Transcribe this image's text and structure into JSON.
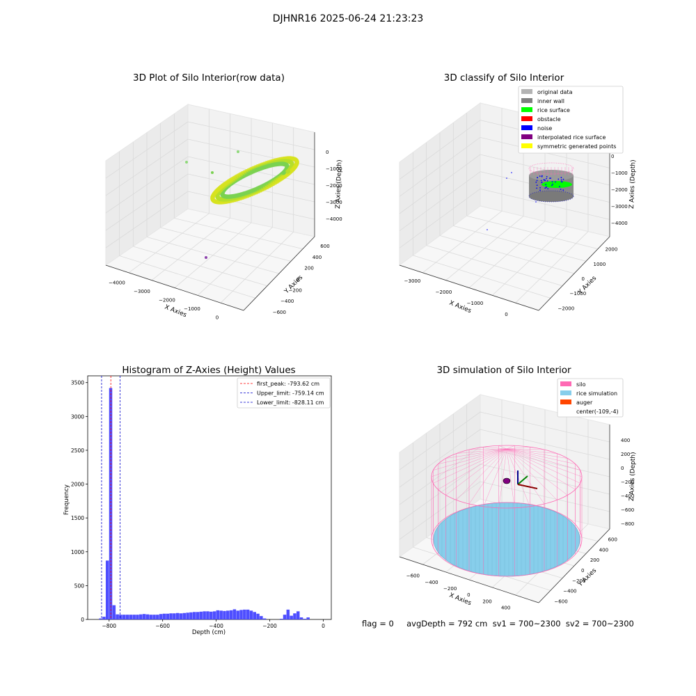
{
  "figure": {
    "suptitle": "DJHNR16 2025-06-24 21:23:23",
    "status_line": "flag = 0     avgDepth = 792 cm  sv1 = 700~2300  sv2 = 700~2300"
  },
  "chart_data": [
    {
      "type": "scatter",
      "title": "3D Plot of Silo Interior(row data)",
      "xlabel": "X Axies",
      "ylabel": "Y Axies",
      "zlabel": "Z Axies (Depth)",
      "x_ticks": [
        -4000,
        -3000,
        -2000,
        -1000,
        0
      ],
      "y_ticks": [
        -600,
        -400,
        -200,
        0,
        200,
        400,
        600
      ],
      "z_ticks": [
        0,
        -1000,
        -2000,
        -3000,
        -4000
      ],
      "colormap": [
        "#440154",
        "#21918c",
        "#7ad151",
        "#fde725"
      ],
      "description_points": "ring-shaped point cloud near top of volume"
    },
    {
      "type": "scatter",
      "title": "3D classify of Silo Interior",
      "xlabel": "X Axies",
      "ylabel": "Y Axies",
      "zlabel": "Z Axies (Depth)",
      "x_ticks": [
        -3000,
        -2000,
        -1000,
        0
      ],
      "y_ticks": [
        -2000,
        -1000,
        0,
        1000,
        2000
      ],
      "z_ticks": [
        0,
        -1000,
        -2000,
        -3000,
        -4000
      ],
      "legend": [
        {
          "label": "original data",
          "color": "#b3b3b3"
        },
        {
          "label": "inner wall",
          "color": "#808080"
        },
        {
          "label": "rice surface",
          "color": "#00ff00"
        },
        {
          "label": "obstacle",
          "color": "#ff0000"
        },
        {
          "label": "noise",
          "color": "#0000ff"
        },
        {
          "label": "interpolated rice surface",
          "color": "#800080"
        },
        {
          "label": "symmetric generated points",
          "color": "#ffff00"
        }
      ]
    },
    {
      "type": "bar",
      "title": "Histogram of Z-Axies (Height) Values",
      "xlabel": "Depth (cm)",
      "ylabel": "Frequency",
      "xlim": [
        -880,
        30
      ],
      "ylim": [
        0,
        3600
      ],
      "x_ticks": [
        -800,
        -600,
        -400,
        -200,
        0
      ],
      "y_ticks": [
        0,
        500,
        1000,
        1500,
        2000,
        2500,
        3000,
        3500
      ],
      "bar_color": "#4444ff",
      "bin_width": 12.5,
      "bins": [
        [
          -837.5,
          15
        ],
        [
          -825,
          40
        ],
        [
          -812.5,
          870
        ],
        [
          -800,
          3420
        ],
        [
          -787.5,
          210
        ],
        [
          -775,
          75
        ],
        [
          -762.5,
          70
        ],
        [
          -750,
          70
        ],
        [
          -737.5,
          70
        ],
        [
          -725,
          70
        ],
        [
          -712.5,
          70
        ],
        [
          -700,
          70
        ],
        [
          -687.5,
          75
        ],
        [
          -675,
          80
        ],
        [
          -662.5,
          75
        ],
        [
          -650,
          70
        ],
        [
          -637.5,
          70
        ],
        [
          -625,
          70
        ],
        [
          -612.5,
          80
        ],
        [
          -600,
          85
        ],
        [
          -587.5,
          85
        ],
        [
          -575,
          90
        ],
        [
          -562.5,
          90
        ],
        [
          -550,
          95
        ],
        [
          -537.5,
          90
        ],
        [
          -525,
          95
        ],
        [
          -512.5,
          100
        ],
        [
          -500,
          105
        ],
        [
          -487.5,
          110
        ],
        [
          -475,
          110
        ],
        [
          -462.5,
          115
        ],
        [
          -450,
          120
        ],
        [
          -437.5,
          120
        ],
        [
          -425,
          115
        ],
        [
          -412.5,
          120
        ],
        [
          -400,
          135
        ],
        [
          -387.5,
          130
        ],
        [
          -375,
          125
        ],
        [
          -362.5,
          130
        ],
        [
          -350,
          135
        ],
        [
          -337.5,
          150
        ],
        [
          -325,
          130
        ],
        [
          -312.5,
          140
        ],
        [
          -300,
          145
        ],
        [
          -287.5,
          145
        ],
        [
          -275,
          130
        ],
        [
          -262.5,
          110
        ],
        [
          -250,
          85
        ],
        [
          -237.5,
          50
        ],
        [
          -225,
          15
        ],
        [
          -162.5,
          10
        ],
        [
          -150,
          70
        ],
        [
          -137.5,
          145
        ],
        [
          -125,
          55
        ],
        [
          -112.5,
          90
        ],
        [
          -100,
          120
        ],
        [
          -87.5,
          30
        ],
        [
          -75,
          10
        ],
        [
          -62.5,
          30
        ]
      ],
      "vlines": [
        {
          "label": "first_peak: -793.62 cm",
          "x": -793.62,
          "color": "#ff0000"
        },
        {
          "label": "Upper_limit: -759.14 cm",
          "x": -759.14,
          "color": "#0000cc"
        },
        {
          "label": "Lower_limit: -828.11 cm",
          "x": -828.11,
          "color": "#0000cc"
        }
      ],
      "legend_position": "upper right"
    },
    {
      "type": "area",
      "title": "3D simulation of Silo Interior",
      "xlabel": "X Axies",
      "ylabel": "Y Axies",
      "zlabel": "Z Axies (Depth)",
      "x_ticks": [
        -600,
        -400,
        -200,
        0,
        200,
        400
      ],
      "y_ticks": [
        -600,
        -400,
        -200,
        0,
        200,
        400,
        600
      ],
      "z_ticks": [
        400,
        200,
        0,
        -200,
        -400,
        -600,
        -800
      ],
      "legend": [
        {
          "label": "silo",
          "color": "#ff69b4"
        },
        {
          "label": "rice simulation",
          "color": "#87ceeb"
        },
        {
          "label": "auger",
          "color": "#ff4500"
        },
        {
          "label": "center(-109,-4)",
          "color": ""
        }
      ]
    }
  ]
}
